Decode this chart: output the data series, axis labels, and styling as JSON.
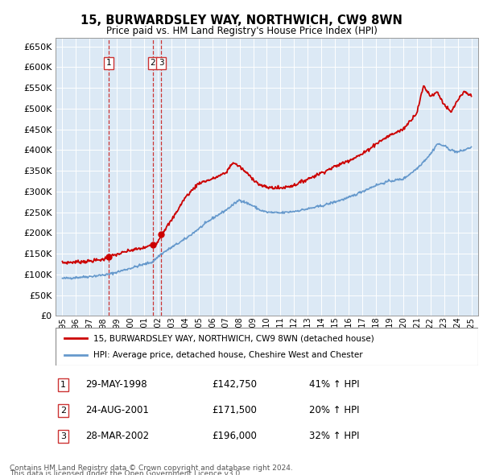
{
  "title": "15, BURWARDSLEY WAY, NORTHWICH, CW9 8WN",
  "subtitle": "Price paid vs. HM Land Registry's House Price Index (HPI)",
  "legend_label_red": "15, BURWARDSLEY WAY, NORTHWICH, CW9 8WN (detached house)",
  "legend_label_blue": "HPI: Average price, detached house, Cheshire West and Chester",
  "footer_line1": "Contains HM Land Registry data © Crown copyright and database right 2024.",
  "footer_line2": "This data is licensed under the Open Government Licence v3.0.",
  "transactions": [
    {
      "num": 1,
      "date": "29-MAY-1998",
      "price": 142750,
      "pct": "41%",
      "date_x": 1998.41
    },
    {
      "num": 2,
      "date": "24-AUG-2001",
      "price": 171500,
      "pct": "20%",
      "date_x": 2001.64
    },
    {
      "num": 3,
      "date": "28-MAR-2002",
      "price": 196000,
      "pct": "32%",
      "date_x": 2002.24
    }
  ],
  "ylim": [
    0,
    670000
  ],
  "yticks": [
    0,
    50000,
    100000,
    150000,
    200000,
    250000,
    300000,
    350000,
    400000,
    450000,
    500000,
    550000,
    600000,
    650000
  ],
  "xlim_start": 1994.5,
  "xlim_end": 2025.5,
  "background_color": "#dce9f5",
  "grid_color": "#ffffff",
  "red_color": "#cc0000",
  "blue_color": "#6699cc",
  "red_dashed_color": "#cc3333",
  "dot_color": "#cc0000"
}
